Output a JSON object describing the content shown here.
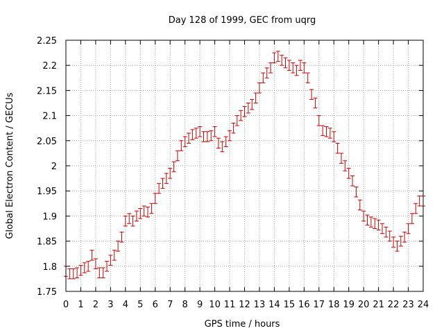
{
  "chart_data": {
    "type": "scatter",
    "title": "Day 128 of 1999, GEC from uqrg",
    "xlabel": "GPS time / hours",
    "ylabel": "Global Electron Content / GECUs",
    "xlim": [
      0,
      24
    ],
    "ylim": [
      1.75,
      2.25
    ],
    "grid": true,
    "xticks": [
      0,
      1,
      2,
      3,
      4,
      5,
      6,
      7,
      8,
      9,
      10,
      11,
      12,
      13,
      14,
      15,
      16,
      17,
      18,
      19,
      20,
      21,
      22,
      23,
      24
    ],
    "xtick_labels": [
      "0",
      "1",
      "2",
      "3",
      "4",
      "5",
      "6",
      "7",
      "8",
      "9",
      "10",
      "11",
      "12",
      "13",
      "14",
      "15",
      "16",
      "17",
      "18",
      "19",
      "20",
      "21",
      "22",
      "23",
      "24"
    ],
    "yticks": [
      1.75,
      1.8,
      1.85,
      1.9,
      1.95,
      2,
      2.05,
      2.1,
      2.15,
      2.2,
      2.25
    ],
    "ytick_labels": [
      "1.75",
      "1.8",
      "1.85",
      "1.9",
      "1.95",
      "2",
      "2.05",
      "2.1",
      "2.15",
      "2.2",
      "2.25"
    ],
    "series": [
      {
        "name": "GEC",
        "color": "#cc0000",
        "error": 0.01,
        "x": [
          0.0,
          0.25,
          0.5,
          0.75,
          1.0,
          1.25,
          1.5,
          1.75,
          2.0,
          2.25,
          2.5,
          2.75,
          3.0,
          3.25,
          3.5,
          3.75,
          4.0,
          4.25,
          4.5,
          4.75,
          5.0,
          5.25,
          5.5,
          5.75,
          6.0,
          6.25,
          6.5,
          6.75,
          7.0,
          7.25,
          7.5,
          7.75,
          8.0,
          8.25,
          8.5,
          8.75,
          9.0,
          9.25,
          9.5,
          9.75,
          10.0,
          10.25,
          10.5,
          10.75,
          11.0,
          11.25,
          11.5,
          11.75,
          12.0,
          12.25,
          12.5,
          12.75,
          13.0,
          13.25,
          13.5,
          13.75,
          14.0,
          14.25,
          14.5,
          14.75,
          15.0,
          15.25,
          15.5,
          15.75,
          16.0,
          16.25,
          16.5,
          16.75,
          17.0,
          17.25,
          17.5,
          17.75,
          18.0,
          18.25,
          18.5,
          18.75,
          19.0,
          19.25,
          19.5,
          19.75,
          20.0,
          20.25,
          20.5,
          20.75,
          21.0,
          21.25,
          21.5,
          21.75,
          22.0,
          22.25,
          22.5,
          22.75,
          23.0,
          23.25,
          23.5,
          23.75,
          24.0
        ],
        "y": [
          1.79,
          1.785,
          1.785,
          1.787,
          1.792,
          1.797,
          1.8,
          1.822,
          1.805,
          1.787,
          1.787,
          1.8,
          1.812,
          1.822,
          1.84,
          1.858,
          1.89,
          1.895,
          1.89,
          1.9,
          1.905,
          1.91,
          1.908,
          1.915,
          1.935,
          1.955,
          1.965,
          1.975,
          1.985,
          1.998,
          2.02,
          2.04,
          2.048,
          2.055,
          2.062,
          2.065,
          2.068,
          2.058,
          2.058,
          2.06,
          2.068,
          2.045,
          2.038,
          2.048,
          2.06,
          2.075,
          2.09,
          2.1,
          2.108,
          2.115,
          2.122,
          2.135,
          2.155,
          2.175,
          2.185,
          2.195,
          2.215,
          2.218,
          2.21,
          2.205,
          2.2,
          2.195,
          2.19,
          2.2,
          2.195,
          2.175,
          2.142,
          2.125,
          2.09,
          2.07,
          2.068,
          2.065,
          2.058,
          2.035,
          2.015,
          2.0,
          1.985,
          1.97,
          1.948,
          1.922,
          1.9,
          1.892,
          1.888,
          1.885,
          1.882,
          1.875,
          1.868,
          1.86,
          1.848,
          1.84,
          1.85,
          1.858,
          1.875,
          1.895,
          1.915,
          1.93,
          1.93
        ]
      }
    ]
  }
}
